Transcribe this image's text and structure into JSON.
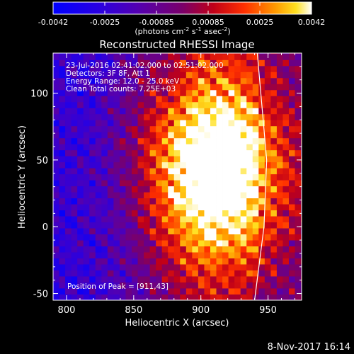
{
  "chart_data": {
    "type": "heatmap",
    "title": "Reconstructed RHESSI Image",
    "xlabel": "Heliocentric X (arcsec)",
    "ylabel": "Heliocentric Y (arcsec)",
    "xlim": [
      790,
      975
    ],
    "ylim": [
      -55,
      130
    ],
    "x_ticks": [
      800,
      850,
      900,
      950
    ],
    "y_ticks": [
      -50,
      0,
      50,
      100
    ],
    "colorbar": {
      "min": -0.0042,
      "max": 0.0042,
      "ticks": [
        "-0.0042",
        "-0.0025",
        "-0.00085",
        "0.00085",
        "0.0025",
        "0.0042"
      ],
      "unit_label": [
        "(photons cm",
        "-2",
        " s",
        "-1",
        " asec",
        "-2",
        ")"
      ]
    },
    "annotations": [
      "23-Jul-2016 02:41:02.000 to 02:51:02.000",
      "Detectors: 3F 8F, Att 1",
      "Energy Range: 12.0 - 25.0 keV",
      "Clean    Total counts: 7.25E+03"
    ],
    "peak_label": "Position of Peak = [911,43]",
    "peak": {
      "x": 911,
      "y": 43
    },
    "limb_arc": [
      [
        942,
        130
      ],
      [
        949,
        50
      ],
      [
        947,
        0
      ],
      [
        940,
        -55
      ]
    ]
  },
  "footer": {
    "date": "8-Nov-2017 16:14"
  }
}
